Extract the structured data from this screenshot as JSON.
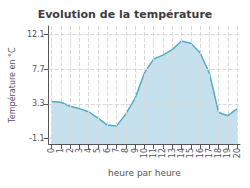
{
  "chart_data": {
    "type": "area",
    "title": "Evolution de la température",
    "xlabel": "heure par heure",
    "ylabel": "Température en °C",
    "x": [
      0,
      1,
      2,
      3,
      4,
      5,
      6,
      7,
      8,
      9,
      10,
      11,
      12,
      13,
      14,
      15,
      16,
      17,
      18,
      19,
      20
    ],
    "values": [
      3.6,
      3.5,
      3.0,
      2.7,
      2.3,
      1.5,
      0.6,
      0.5,
      2.0,
      4.0,
      7.2,
      9.0,
      9.5,
      10.2,
      11.3,
      11.0,
      9.8,
      7.2,
      2.2,
      1.8,
      2.7
    ],
    "color": "#55aacc",
    "xlim": [
      -0.3,
      20.3
    ],
    "xticks": [
      0,
      1,
      2,
      3,
      4,
      5,
      6,
      7,
      8,
      9,
      10,
      11,
      12,
      13,
      14,
      15,
      16,
      17,
      18,
      19,
      20
    ],
    "ylim": [
      -1.8,
      13.2
    ],
    "yticks": [
      -1.1,
      3.3,
      7.7,
      12.1
    ],
    "grid": true
  }
}
